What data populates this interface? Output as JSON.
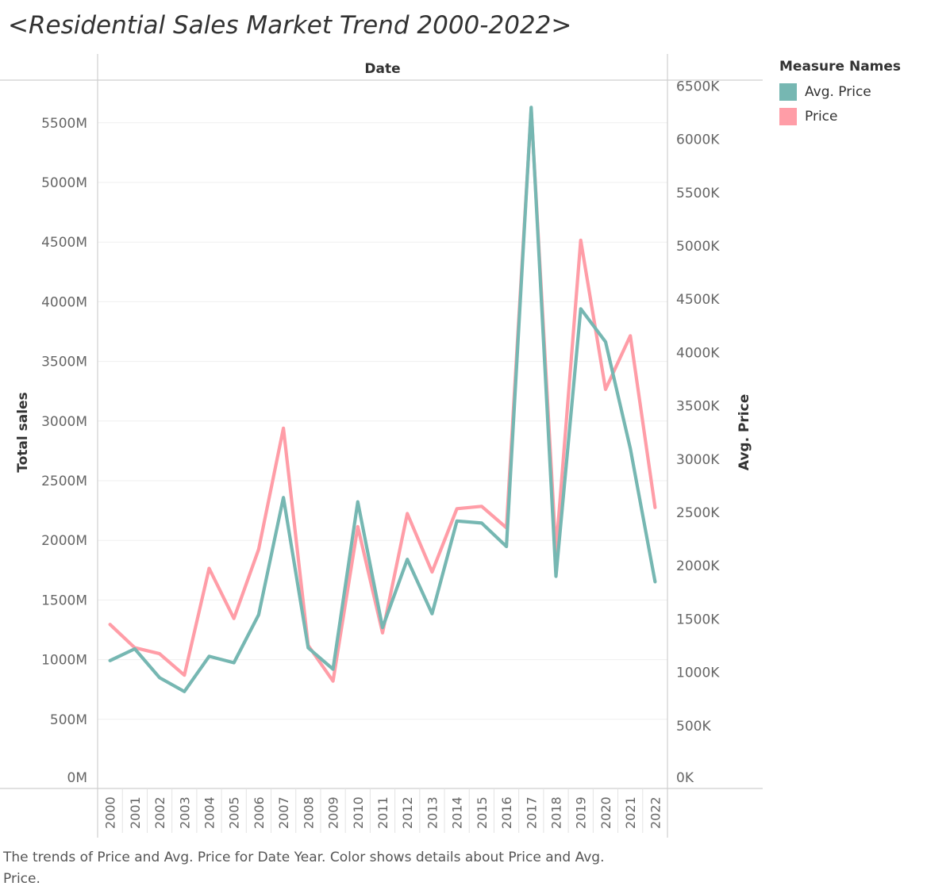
{
  "title": "<Residential Sales Market Trend 2000-2022>",
  "caption": "The trends of Price and Avg. Price for Date Year.  Color shows details about Price and Avg. Price.",
  "legend": {
    "title": "Measure Names",
    "items": [
      {
        "label": "Avg. Price",
        "color": "#76b7b2"
      },
      {
        "label": "Price",
        "color": "#ff9da7"
      }
    ]
  },
  "chart_data": {
    "type": "line",
    "header": "Date",
    "x": [
      "2000",
      "2001",
      "2002",
      "2003",
      "2004",
      "2005",
      "2006",
      "2007",
      "2008",
      "2009",
      "2010",
      "2011",
      "2012",
      "2013",
      "2014",
      "2015",
      "2016",
      "2017",
      "2018",
      "2019",
      "2020",
      "2021",
      "2022"
    ],
    "left_axis": {
      "label": "Total sales",
      "ylim": [
        0,
        5800
      ],
      "ticks": [
        0,
        500,
        1000,
        1500,
        2000,
        2500,
        3000,
        3500,
        4000,
        4500,
        5000,
        5500
      ],
      "tick_labels": [
        "0M",
        "500M",
        "1000M",
        "1500M",
        "2000M",
        "2500M",
        "3000M",
        "3500M",
        "4000M",
        "4500M",
        "5000M",
        "5500M"
      ]
    },
    "right_axis": {
      "label": "Avg. Price",
      "ylim": [
        0,
        6600
      ],
      "ticks": [
        0,
        500,
        1000,
        1500,
        2000,
        2500,
        3000,
        3500,
        4000,
        4500,
        5000,
        5500,
        6000,
        6500
      ],
      "tick_labels": [
        "0K",
        "500K",
        "1000K",
        "1500K",
        "2000K",
        "2500K",
        "3000K",
        "3500K",
        "4000K",
        "4500K",
        "5000K",
        "5500K",
        "6000K",
        "6500K"
      ]
    },
    "series": [
      {
        "name": "Price",
        "axis": "left",
        "color": "#ff9da7",
        "values": [
          1295,
          1100,
          1050,
          870,
          1765,
          1345,
          1925,
          2940,
          1120,
          820,
          2115,
          1225,
          2225,
          1735,
          2265,
          2285,
          2105,
          5610,
          1905,
          4515,
          3265,
          3715,
          2275
        ]
      },
      {
        "name": "Avg. Price",
        "axis": "right",
        "color": "#76b7b2",
        "values": [
          1110,
          1220,
          950,
          820,
          1150,
          1090,
          1540,
          2640,
          1230,
          1030,
          2600,
          1420,
          2060,
          1550,
          2420,
          2400,
          2180,
          6300,
          1900,
          4410,
          4100,
          3100,
          1850
        ]
      }
    ],
    "grid": true,
    "legend_position": "top-right"
  }
}
